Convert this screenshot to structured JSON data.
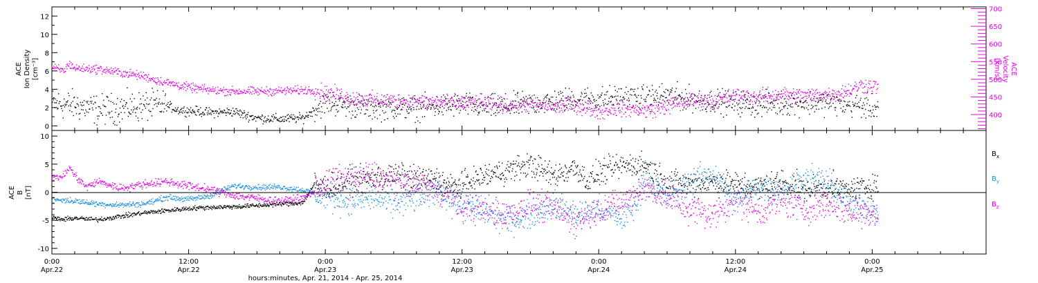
{
  "colors": {
    "black": "#000000",
    "magenta": "#e400e4",
    "blue": "#1c8ee0"
  },
  "x_axis": {
    "title": "hours:minutes, Apr. 21, 2014 - Apr. 25, 2014",
    "unit": "hours from Apr.22 0:00",
    "range": [
      0,
      82
    ],
    "major_ticks": [
      {
        "t": 0,
        "time": "0:00",
        "date": "Apr.22"
      },
      {
        "t": 12,
        "time": "12:00",
        "date": "Apr.22"
      },
      {
        "t": 24,
        "time": "0:00",
        "date": "Apr.23"
      },
      {
        "t": 36,
        "time": "12:00",
        "date": "Apr.23"
      },
      {
        "t": 48,
        "time": "0:00",
        "date": "Apr.24"
      },
      {
        "t": 60,
        "time": "12:00",
        "date": "Apr.24"
      },
      {
        "t": 72,
        "time": "0:00",
        "date": "Apr.25"
      }
    ]
  },
  "top_panel": {
    "left_label_lines": [
      "ACE",
      "Ion Density",
      "[cm⁻³]"
    ],
    "right_label_lines": [
      "ACE",
      "Velocity",
      "[km/s]"
    ],
    "left_ticks": [
      "0",
      "2",
      "4",
      "6",
      "8",
      "10",
      "12"
    ],
    "right_ticks": [
      "400",
      "450",
      "500",
      "550",
      "600",
      "650",
      "700"
    ]
  },
  "bottom_panel": {
    "label_lines": [
      "ACE",
      "B",
      "[nT]"
    ],
    "ticks": [
      "-10",
      "-5",
      "0",
      "5",
      "10"
    ],
    "legend": [
      {
        "label": "B",
        "sub": "x",
        "color": "black"
      },
      {
        "label": "B",
        "sub": "y",
        "color": "blue"
      },
      {
        "label": "B",
        "sub": "z",
        "color": "magenta"
      }
    ]
  },
  "chart_data": [
    {
      "type": "scatter",
      "title": "",
      "xlabel": "hours:minutes, Apr. 21, 2014 - Apr. 25, 2014",
      "ylabel": "ACE Ion Density [cm⁻³]",
      "y2label": "ACE Velocity [km/s]",
      "xlim": [
        0,
        82
      ],
      "ylim": [
        -0.5,
        13
      ],
      "y2lim": [
        355,
        705
      ],
      "series": [
        {
          "name": "Ion Density",
          "axis": "left",
          "color": "black",
          "x": [
            0,
            2,
            4,
            6,
            8,
            10,
            11,
            12,
            14,
            16,
            17,
            18,
            20,
            22,
            23,
            24,
            26,
            28,
            30,
            32,
            34,
            36,
            38,
            40,
            42,
            44,
            46,
            48,
            50,
            52,
            54,
            56,
            58,
            60,
            62,
            64,
            66,
            68,
            70,
            72.5
          ],
          "y": [
            2.5,
            2.3,
            1.8,
            2.0,
            2.2,
            2.3,
            1.8,
            1.7,
            1.5,
            1.6,
            1.2,
            0.9,
            0.8,
            0.9,
            1.8,
            2.6,
            2.3,
            2.0,
            2.1,
            2.0,
            2.2,
            2.4,
            2.1,
            2.2,
            2.5,
            2.7,
            3.0,
            3.0,
            3.2,
            3.1,
            3.4,
            3.0,
            2.8,
            2.5,
            2.4,
            2.5,
            2.6,
            2.6,
            2.4,
            2.0
          ]
        },
        {
          "name": "Velocity",
          "axis": "right",
          "color": "magenta",
          "x": [
            0,
            1,
            1.5,
            2,
            4,
            6,
            8,
            9,
            10,
            12,
            14,
            16,
            18,
            20,
            22,
            23,
            24,
            25,
            26,
            28,
            30,
            32,
            34,
            36,
            38,
            40,
            42,
            44,
            46,
            48,
            50,
            52,
            54,
            56,
            58,
            60,
            62,
            64,
            66,
            68,
            69,
            70,
            71,
            72.5
          ],
          "y": [
            535,
            525,
            545,
            532,
            530,
            520,
            510,
            500,
            492,
            478,
            470,
            467,
            467,
            468,
            470,
            470,
            463,
            458,
            448,
            443,
            440,
            438,
            436,
            434,
            432,
            428,
            430,
            424,
            428,
            410,
            420,
            412,
            425,
            440,
            438,
            455,
            450,
            458,
            455,
            458,
            462,
            470,
            485,
            480
          ]
        }
      ]
    },
    {
      "type": "scatter",
      "title": "",
      "xlabel": "hours:minutes, Apr. 21, 2014 - Apr. 25, 2014",
      "ylabel": "ACE B [nT]",
      "xlim": [
        0,
        82
      ],
      "ylim": [
        -11,
        11
      ],
      "series": [
        {
          "name": "Bx",
          "color": "black",
          "x": [
            0,
            1,
            2,
            3,
            4,
            6,
            8,
            10,
            12,
            14,
            16,
            18,
            20,
            22,
            23,
            24,
            26,
            28,
            30,
            32,
            34,
            35,
            36,
            38,
            40,
            42,
            44,
            46,
            47,
            48,
            50,
            52,
            54,
            56,
            58,
            60,
            62,
            64,
            66,
            68,
            70,
            72.5
          ],
          "y": [
            -4.5,
            -4.8,
            -4.5,
            -4.7,
            -4.8,
            -4.2,
            -3.6,
            -3.2,
            -2.8,
            -2.6,
            -2.5,
            -2.3,
            -2.0,
            -1.8,
            1.5,
            1.0,
            2.0,
            2.5,
            3.0,
            2.5,
            2.2,
            1.0,
            1.5,
            3.0,
            4.0,
            5.0,
            3.0,
            4.5,
            2.0,
            3.5,
            4.8,
            5.0,
            2.0,
            1.5,
            2.0,
            1.5,
            1.0,
            2.0,
            0.5,
            1.0,
            0.5,
            1.5
          ]
        },
        {
          "name": "By",
          "color": "blue",
          "x": [
            0,
            2,
            4,
            6,
            8,
            9,
            10,
            12,
            14,
            15,
            16,
            18,
            20,
            22,
            24,
            26,
            28,
            30,
            32,
            34,
            36,
            38,
            40,
            42,
            44,
            46,
            48,
            50,
            51,
            52,
            54,
            56,
            58,
            60,
            62,
            64,
            66,
            68,
            70,
            72.5
          ],
          "y": [
            -1.2,
            -1.5,
            -2.0,
            -2.2,
            -2.0,
            -1.5,
            -0.8,
            -1.2,
            -0.5,
            0.5,
            1.2,
            1.0,
            1.0,
            0.5,
            -0.8,
            -1.5,
            -1.0,
            -2.0,
            -1.0,
            0.5,
            -2.5,
            -3.5,
            -5.0,
            -4.0,
            -2.0,
            -4.0,
            -3.0,
            -4.5,
            -3.0,
            3.0,
            -1.0,
            2.0,
            3.5,
            -1.5,
            1.0,
            0.5,
            2.5,
            2.0,
            -2.0,
            -3.0
          ]
        },
        {
          "name": "Bz",
          "color": "magenta",
          "x": [
            0,
            1,
            1.5,
            2,
            3,
            4,
            6,
            8,
            10,
            12,
            14,
            16,
            18,
            19,
            20,
            22,
            24,
            26,
            28,
            30,
            32,
            34,
            35,
            36,
            38,
            40,
            42,
            44,
            46,
            48,
            50,
            52,
            54,
            56,
            58,
            60,
            62,
            64,
            66,
            68,
            70,
            72.5
          ],
          "y": [
            2.5,
            3.0,
            4.5,
            3.0,
            1.0,
            2.0,
            0.8,
            1.5,
            2.0,
            1.2,
            0.5,
            -0.5,
            -1.0,
            -1.3,
            -1.5,
            -1.0,
            1.5,
            2.5,
            3.0,
            2.0,
            1.5,
            0.5,
            -1.0,
            -2.5,
            -3.0,
            -4.0,
            -2.0,
            -3.0,
            -5.0,
            -3.0,
            -2.0,
            1.0,
            -1.0,
            -3.0,
            -4.0,
            -1.0,
            -3.5,
            -1.5,
            -3.0,
            -2.0,
            -3.5,
            -3.5
          ]
        }
      ]
    }
  ]
}
